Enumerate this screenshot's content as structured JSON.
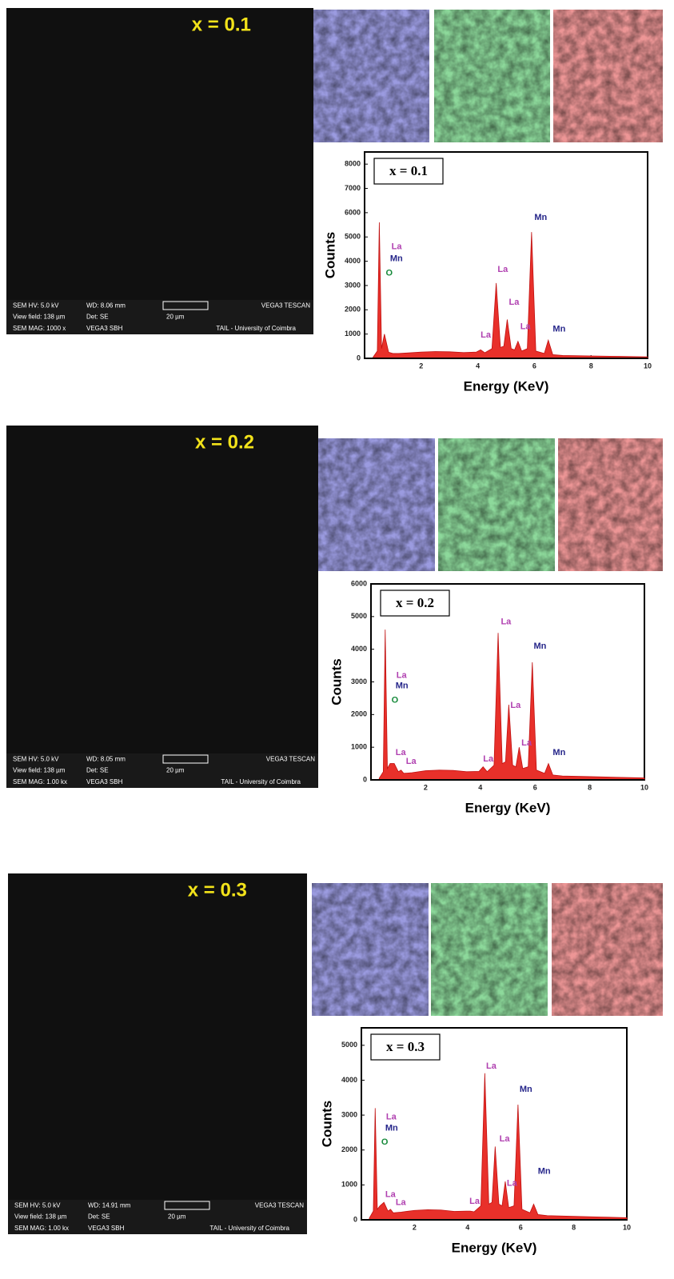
{
  "sem_images": [
    {
      "label": "x = 0.1",
      "hv": "SEM HV: 5.0 kV",
      "wd": "WD: 8.06 mm",
      "brand": "VEGA3 TESCAN",
      "view": "View field: 138 µm",
      "det": "Det: SE",
      "scale": "20 µm",
      "mag": "SEM MAG: 1000 x",
      "model": "VEGA3 SBH",
      "inst": "TAIL - University of Coimbra"
    },
    {
      "label": "x = 0.2",
      "hv": "SEM HV: 5.0 kV",
      "wd": "WD: 8.05 mm",
      "brand": "VEGA3 TESCAN",
      "view": "View field: 138 µm",
      "det": "Det: SE",
      "scale": "20 µm",
      "mag": "SEM MAG: 1.00 kx",
      "model": "VEGA3 SBH",
      "inst": "TAIL - University of Coimbra"
    },
    {
      "label": "x = 0.3",
      "hv": "SEM HV: 5.0 kV",
      "wd": "WD: 14.91 mm",
      "brand": "VEGA3 TESCAN",
      "view": "View field: 138 µm",
      "det": "Det: SE",
      "scale": "20 µm",
      "mag": "SEM MAG: 1.00 kx",
      "model": "VEGA3 SBH",
      "inst": "TAIL - University of Coimbra"
    }
  ],
  "map_colors": [
    "#8f8fe0",
    "#7fd88f",
    "#f08a8a"
  ],
  "annotation_colors": {
    "La": "#b040b0",
    "Mn": "#26268a",
    "O": "#168a3a"
  },
  "chart_data": [
    {
      "type": "area",
      "label": "x = 0.1",
      "xlabel": "Energy (KeV)",
      "ylabel": "Counts",
      "color": "#e8302a",
      "xlim": [
        0,
        10
      ],
      "xticks": [
        2,
        4,
        6,
        8,
        10
      ],
      "ylim": [
        0,
        8500
      ],
      "yticks": [
        0,
        1000,
        2000,
        3000,
        4000,
        5000,
        6000,
        7000,
        8000
      ],
      "x": [
        0.3,
        0.45,
        0.52,
        0.6,
        0.7,
        0.85,
        1.0,
        1.1,
        1.2,
        1.5,
        2,
        2.5,
        3,
        3.5,
        3.95,
        4.1,
        4.25,
        4.5,
        4.65,
        4.8,
        4.92,
        5.04,
        5.18,
        5.3,
        5.42,
        5.55,
        5.75,
        5.9,
        6.05,
        6.35,
        6.49,
        6.65,
        7,
        8,
        9,
        10
      ],
      "values": [
        50,
        300,
        5600,
        400,
        1000,
        250,
        200,
        200,
        200,
        220,
        260,
        280,
        270,
        240,
        260,
        350,
        230,
        400,
        3100,
        450,
        500,
        1600,
        400,
        350,
        700,
        300,
        400,
        5200,
        300,
        200,
        750,
        150,
        120,
        100,
        80,
        60
      ],
      "annotations": [
        {
          "text": "La",
          "x": 0.95,
          "y": 4600
        },
        {
          "text": "Mn",
          "x": 0.9,
          "y": 4100
        },
        {
          "text": "O",
          "x": 0.75,
          "y": 3500
        },
        {
          "text": "La",
          "x": 4.7,
          "y": 3650
        },
        {
          "text": "La",
          "x": 5.1,
          "y": 2300
        },
        {
          "text": "La",
          "x": 4.1,
          "y": 950
        },
        {
          "text": "La",
          "x": 5.5,
          "y": 1300
        },
        {
          "text": "Mn",
          "x": 6.0,
          "y": 5800
        },
        {
          "text": "Mn",
          "x": 6.65,
          "y": 1200
        }
      ]
    },
    {
      "type": "area",
      "label": "x = 0.2",
      "xlabel": "Energy (KeV)",
      "ylabel": "Counts",
      "color": "#e8302a",
      "xlim": [
        0,
        10
      ],
      "xticks": [
        2,
        4,
        6,
        8,
        10
      ],
      "ylim": [
        0,
        6000
      ],
      "yticks": [
        0,
        1000,
        2000,
        3000,
        4000,
        5000,
        6000
      ],
      "x": [
        0.3,
        0.45,
        0.52,
        0.6,
        0.7,
        0.85,
        1.0,
        1.1,
        1.2,
        1.5,
        2,
        2.5,
        3,
        3.5,
        3.95,
        4.1,
        4.25,
        4.5,
        4.65,
        4.8,
        4.92,
        5.04,
        5.18,
        5.3,
        5.42,
        5.55,
        5.75,
        5.9,
        6.05,
        6.35,
        6.49,
        6.65,
        7,
        8,
        9,
        10
      ],
      "values": [
        50,
        250,
        4600,
        350,
        500,
        500,
        250,
        300,
        200,
        220,
        280,
        300,
        290,
        250,
        260,
        400,
        250,
        450,
        4500,
        500,
        550,
        2300,
        450,
        400,
        1000,
        350,
        400,
        3600,
        300,
        200,
        500,
        150,
        120,
        100,
        80,
        60
      ],
      "annotations": [
        {
          "text": "La",
          "x": 0.93,
          "y": 3190
        },
        {
          "text": "Mn",
          "x": 0.9,
          "y": 2870
        },
        {
          "text": "O",
          "x": 0.75,
          "y": 2430
        },
        {
          "text": "La",
          "x": 0.9,
          "y": 830
        },
        {
          "text": "La",
          "x": 1.28,
          "y": 560
        },
        {
          "text": "La",
          "x": 4.1,
          "y": 640
        },
        {
          "text": "La",
          "x": 4.75,
          "y": 4830
        },
        {
          "text": "La",
          "x": 5.1,
          "y": 2280
        },
        {
          "text": "La",
          "x": 5.5,
          "y": 1130
        },
        {
          "text": "Mn",
          "x": 5.95,
          "y": 4090
        },
        {
          "text": "Mn",
          "x": 6.65,
          "y": 830
        }
      ]
    },
    {
      "type": "area",
      "label": "x = 0.3",
      "xlabel": "Energy (KeV)",
      "ylabel": "Counts",
      "color": "#e8302a",
      "xlim": [
        0,
        10
      ],
      "xticks": [
        2,
        4,
        6,
        8,
        10
      ],
      "ylim": [
        0,
        5500
      ],
      "yticks": [
        0,
        1000,
        2000,
        3000,
        4000,
        5000
      ],
      "x": [
        0.3,
        0.45,
        0.52,
        0.6,
        0.7,
        0.85,
        1.0,
        1.1,
        1.2,
        1.5,
        2,
        2.5,
        3,
        3.5,
        3.95,
        4.1,
        4.25,
        4.5,
        4.65,
        4.8,
        4.92,
        5.04,
        5.18,
        5.3,
        5.42,
        5.55,
        5.75,
        5.9,
        6.05,
        6.35,
        6.49,
        6.65,
        7,
        8,
        9,
        10
      ],
      "values": [
        50,
        250,
        3200,
        300,
        400,
        500,
        250,
        300,
        200,
        220,
        270,
        290,
        280,
        240,
        250,
        250,
        230,
        400,
        4200,
        450,
        500,
        2100,
        450,
        400,
        1100,
        350,
        400,
        3300,
        300,
        200,
        450,
        150,
        120,
        100,
        80,
        60
      ],
      "annotations": [
        {
          "text": "La",
          "x": 0.93,
          "y": 2940
        },
        {
          "text": "Mn",
          "x": 0.9,
          "y": 2620
        },
        {
          "text": "O",
          "x": 0.75,
          "y": 2220
        },
        {
          "text": "La",
          "x": 0.9,
          "y": 720
        },
        {
          "text": "La",
          "x": 1.29,
          "y": 490
        },
        {
          "text": "La",
          "x": 4.07,
          "y": 530
        },
        {
          "text": "La",
          "x": 4.7,
          "y": 4400
        },
        {
          "text": "La",
          "x": 5.2,
          "y": 2310
        },
        {
          "text": "La",
          "x": 5.48,
          "y": 1040
        },
        {
          "text": "Mn",
          "x": 5.96,
          "y": 3730
        },
        {
          "text": "Mn",
          "x": 6.65,
          "y": 1390
        }
      ]
    }
  ]
}
